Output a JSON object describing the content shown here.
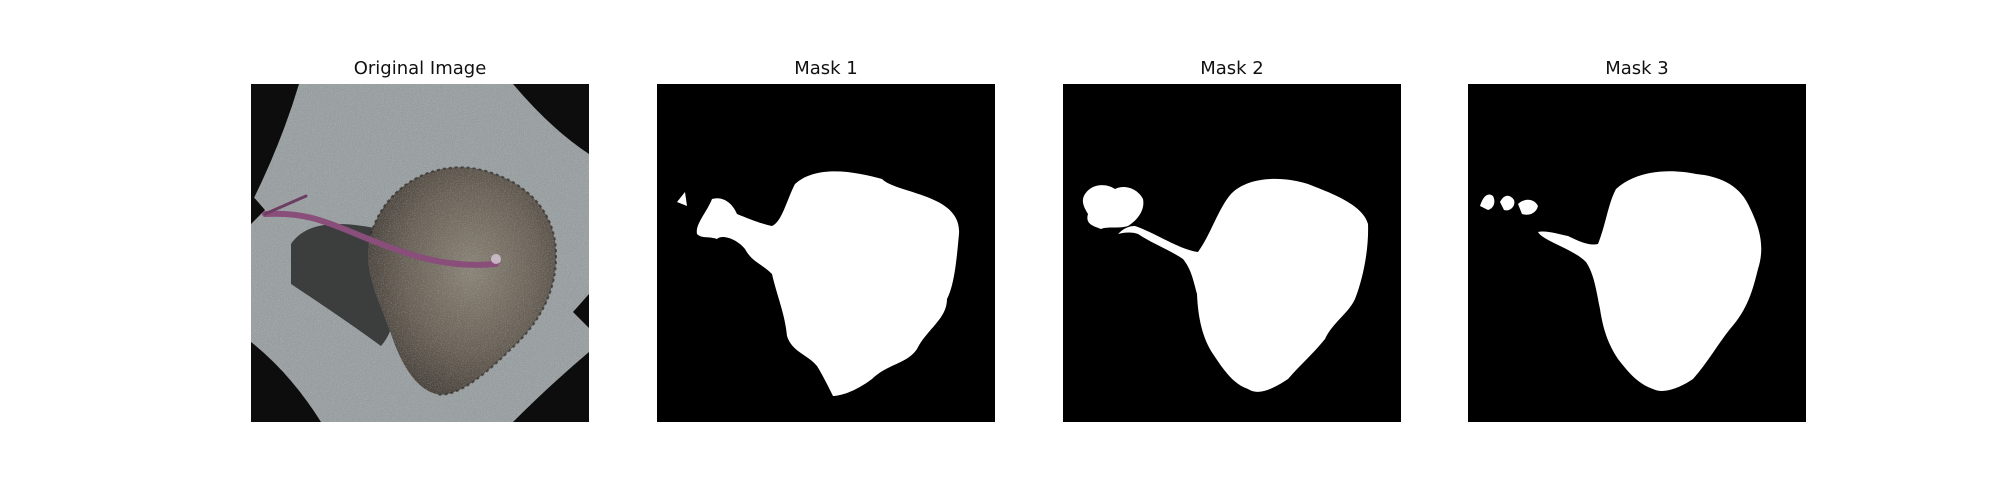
{
  "figure": {
    "panels": [
      {
        "title": "Original Image",
        "image_kind": "photo of leaf"
      },
      {
        "title": "Mask 1",
        "image_kind": "binary mask"
      },
      {
        "title": "Mask 2",
        "image_kind": "binary mask"
      },
      {
        "title": "Mask 3",
        "image_kind": "binary mask"
      }
    ]
  },
  "colors": {
    "mask_background": "#000000",
    "mask_foreground": "#ffffff",
    "surface_gray": "#9aa0a2",
    "leaf_dark": "#4d463e",
    "leaf_light": "#8b8478",
    "stem_purple": "#8a4e7a"
  }
}
